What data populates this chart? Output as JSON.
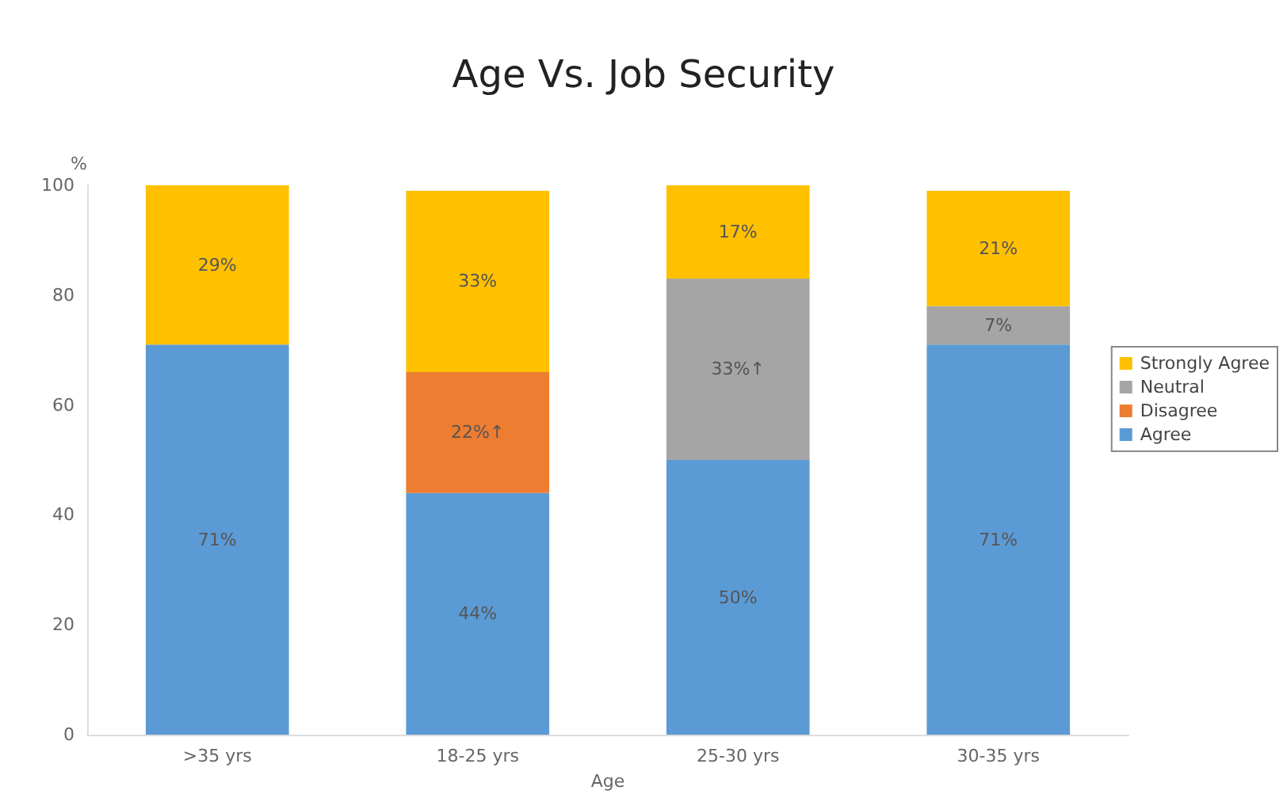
{
  "chart_data": {
    "type": "bar",
    "title": "Age Vs. Job Security",
    "xlabel": "Age",
    "ylabel": "%",
    "categories": [
      ">35 yrs",
      "18-25 yrs",
      "25-30 yrs",
      "30-35 yrs"
    ],
    "stacked": true,
    "series": [
      {
        "name": "Agree",
        "color": "#5b9bd5",
        "values": [
          71,
          44,
          50,
          71
        ],
        "value_labels": [
          "71%",
          "44%",
          "50%",
          "71%"
        ]
      },
      {
        "name": "Disagree",
        "color": "#ed7d31",
        "values": [
          null,
          22,
          null,
          null
        ],
        "value_labels": [
          null,
          "22%↑",
          null,
          null
        ]
      },
      {
        "name": "Neutral",
        "color": "#a5a5a5",
        "values": [
          null,
          null,
          33,
          7
        ],
        "value_labels": [
          null,
          null,
          "33%↑",
          "7%"
        ]
      },
      {
        "name": "Strongly Agree",
        "color": "#ffc000",
        "values": [
          29,
          33,
          17,
          21
        ],
        "value_labels": [
          "29%",
          "33%",
          "17%",
          "21%"
        ]
      }
    ],
    "ylim": [
      0,
      100
    ],
    "yticks": [
      0,
      20,
      40,
      60,
      80,
      100
    ],
    "grid": false,
    "legend": "right"
  }
}
